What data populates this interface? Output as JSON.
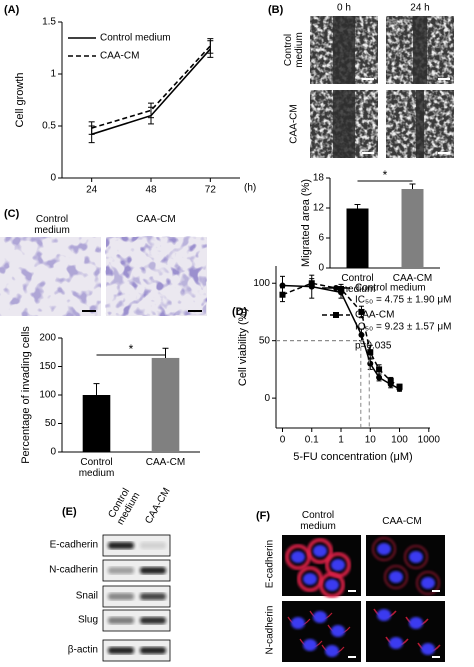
{
  "panel_labels": [
    "(A)",
    "(B)",
    "(C)",
    "(D)",
    "(E)",
    "(F)"
  ],
  "chart_data": [
    {
      "type": "line",
      "ylabel": "Cell growth",
      "xlabel": "(h)",
      "x": [
        24,
        48,
        72
      ],
      "xlim": [
        12,
        84
      ],
      "xticks": [
        24,
        48,
        72
      ],
      "ylim": [
        0,
        1.5
      ],
      "yticks": [
        0,
        0.5,
        1,
        1.5
      ],
      "series": [
        {
          "name": "Control medium",
          "color": "#000000",
          "dash": "solid",
          "values": [
            0.42,
            0.6,
            1.24
          ],
          "errors": [
            0.08,
            0.08,
            0.08
          ]
        },
        {
          "name": "CAA-CM",
          "color": "#000000",
          "dash": "dashed",
          "values": [
            0.48,
            0.65,
            1.27
          ],
          "errors": [
            0.06,
            0.07,
            0.07
          ]
        }
      ]
    },
    {
      "type": "bar",
      "ylabel": "Migrated area (%)",
      "categories": [
        "Control medium",
        "CAA-CM"
      ],
      "values": [
        11.9,
        15.8
      ],
      "errors": [
        0.8,
        1.0
      ],
      "colors": [
        "#000000",
        "#808080"
      ],
      "ylim": [
        0,
        18
      ],
      "yticks": [
        0,
        6,
        12,
        18
      ],
      "annotation": "*"
    },
    {
      "type": "bar",
      "ylabel": "Percentage of invading cells",
      "categories": [
        "Control medium",
        "CAA-CM"
      ],
      "values": [
        100,
        165
      ],
      "errors": [
        20,
        17
      ],
      "colors": [
        "#000000",
        "#808080"
      ],
      "ylim": [
        0,
        200
      ],
      "yticks": [
        0,
        50,
        100,
        150,
        200
      ],
      "annotation": "*"
    },
    {
      "type": "scatter",
      "ylabel": "Cell viability (%)",
      "xlabel": "5-FU concentration (μM)",
      "log_x": true,
      "x": [
        0.01,
        0.1,
        1,
        5,
        10,
        20,
        50,
        100
      ],
      "xlim": [
        0.006,
        1100
      ],
      "xticks": [
        {
          "value": 0.01,
          "label": "0"
        },
        0.1,
        1,
        10,
        100,
        1000
      ],
      "ylim": [
        -26,
        115
      ],
      "yticks": [
        0,
        50,
        100
      ],
      "annotation": "p=0.035",
      "series": [
        {
          "name": "Control medium",
          "color": "#000000",
          "marker": "circle",
          "dash": "solid",
          "values": [
            98,
            97,
            92,
            55,
            30,
            18,
            12,
            8
          ],
          "errors": [
            8,
            10,
            5,
            5,
            5,
            3,
            3,
            2
          ],
          "ic50": 4.75,
          "ic50_label": "IC₅₀ = 4.75 ± 1.90 μM"
        },
        {
          "name": "CAA-CM",
          "color": "#000000",
          "marker": "square",
          "dash": "dashed",
          "values": [
            90,
            100,
            95,
            75,
            40,
            25,
            15,
            10
          ],
          "errors": [
            6,
            4,
            4,
            5,
            6,
            4,
            3,
            2
          ],
          "ic50": 9.23,
          "ic50_label": "IC₅₀ = 9.23 ± 1.57 μM"
        }
      ]
    }
  ],
  "panel_b_images": {
    "columns": [
      "0 h",
      "24 h"
    ],
    "rows": [
      "Control medium",
      "CAA-CM"
    ]
  },
  "panel_c_images": {
    "columns": [
      "Control medium",
      "CAA-CM"
    ]
  },
  "panel_e": {
    "lanes": [
      "Control medium",
      "CAA-CM"
    ],
    "rows": [
      "E-cadherin",
      "N-cadherin",
      "Snail",
      "Slug",
      "β-actin"
    ]
  },
  "panel_f": {
    "columns": [
      "Control medium",
      "CAA-CM"
    ],
    "rows": [
      "E-cadherin",
      "N-cadherin"
    ]
  }
}
